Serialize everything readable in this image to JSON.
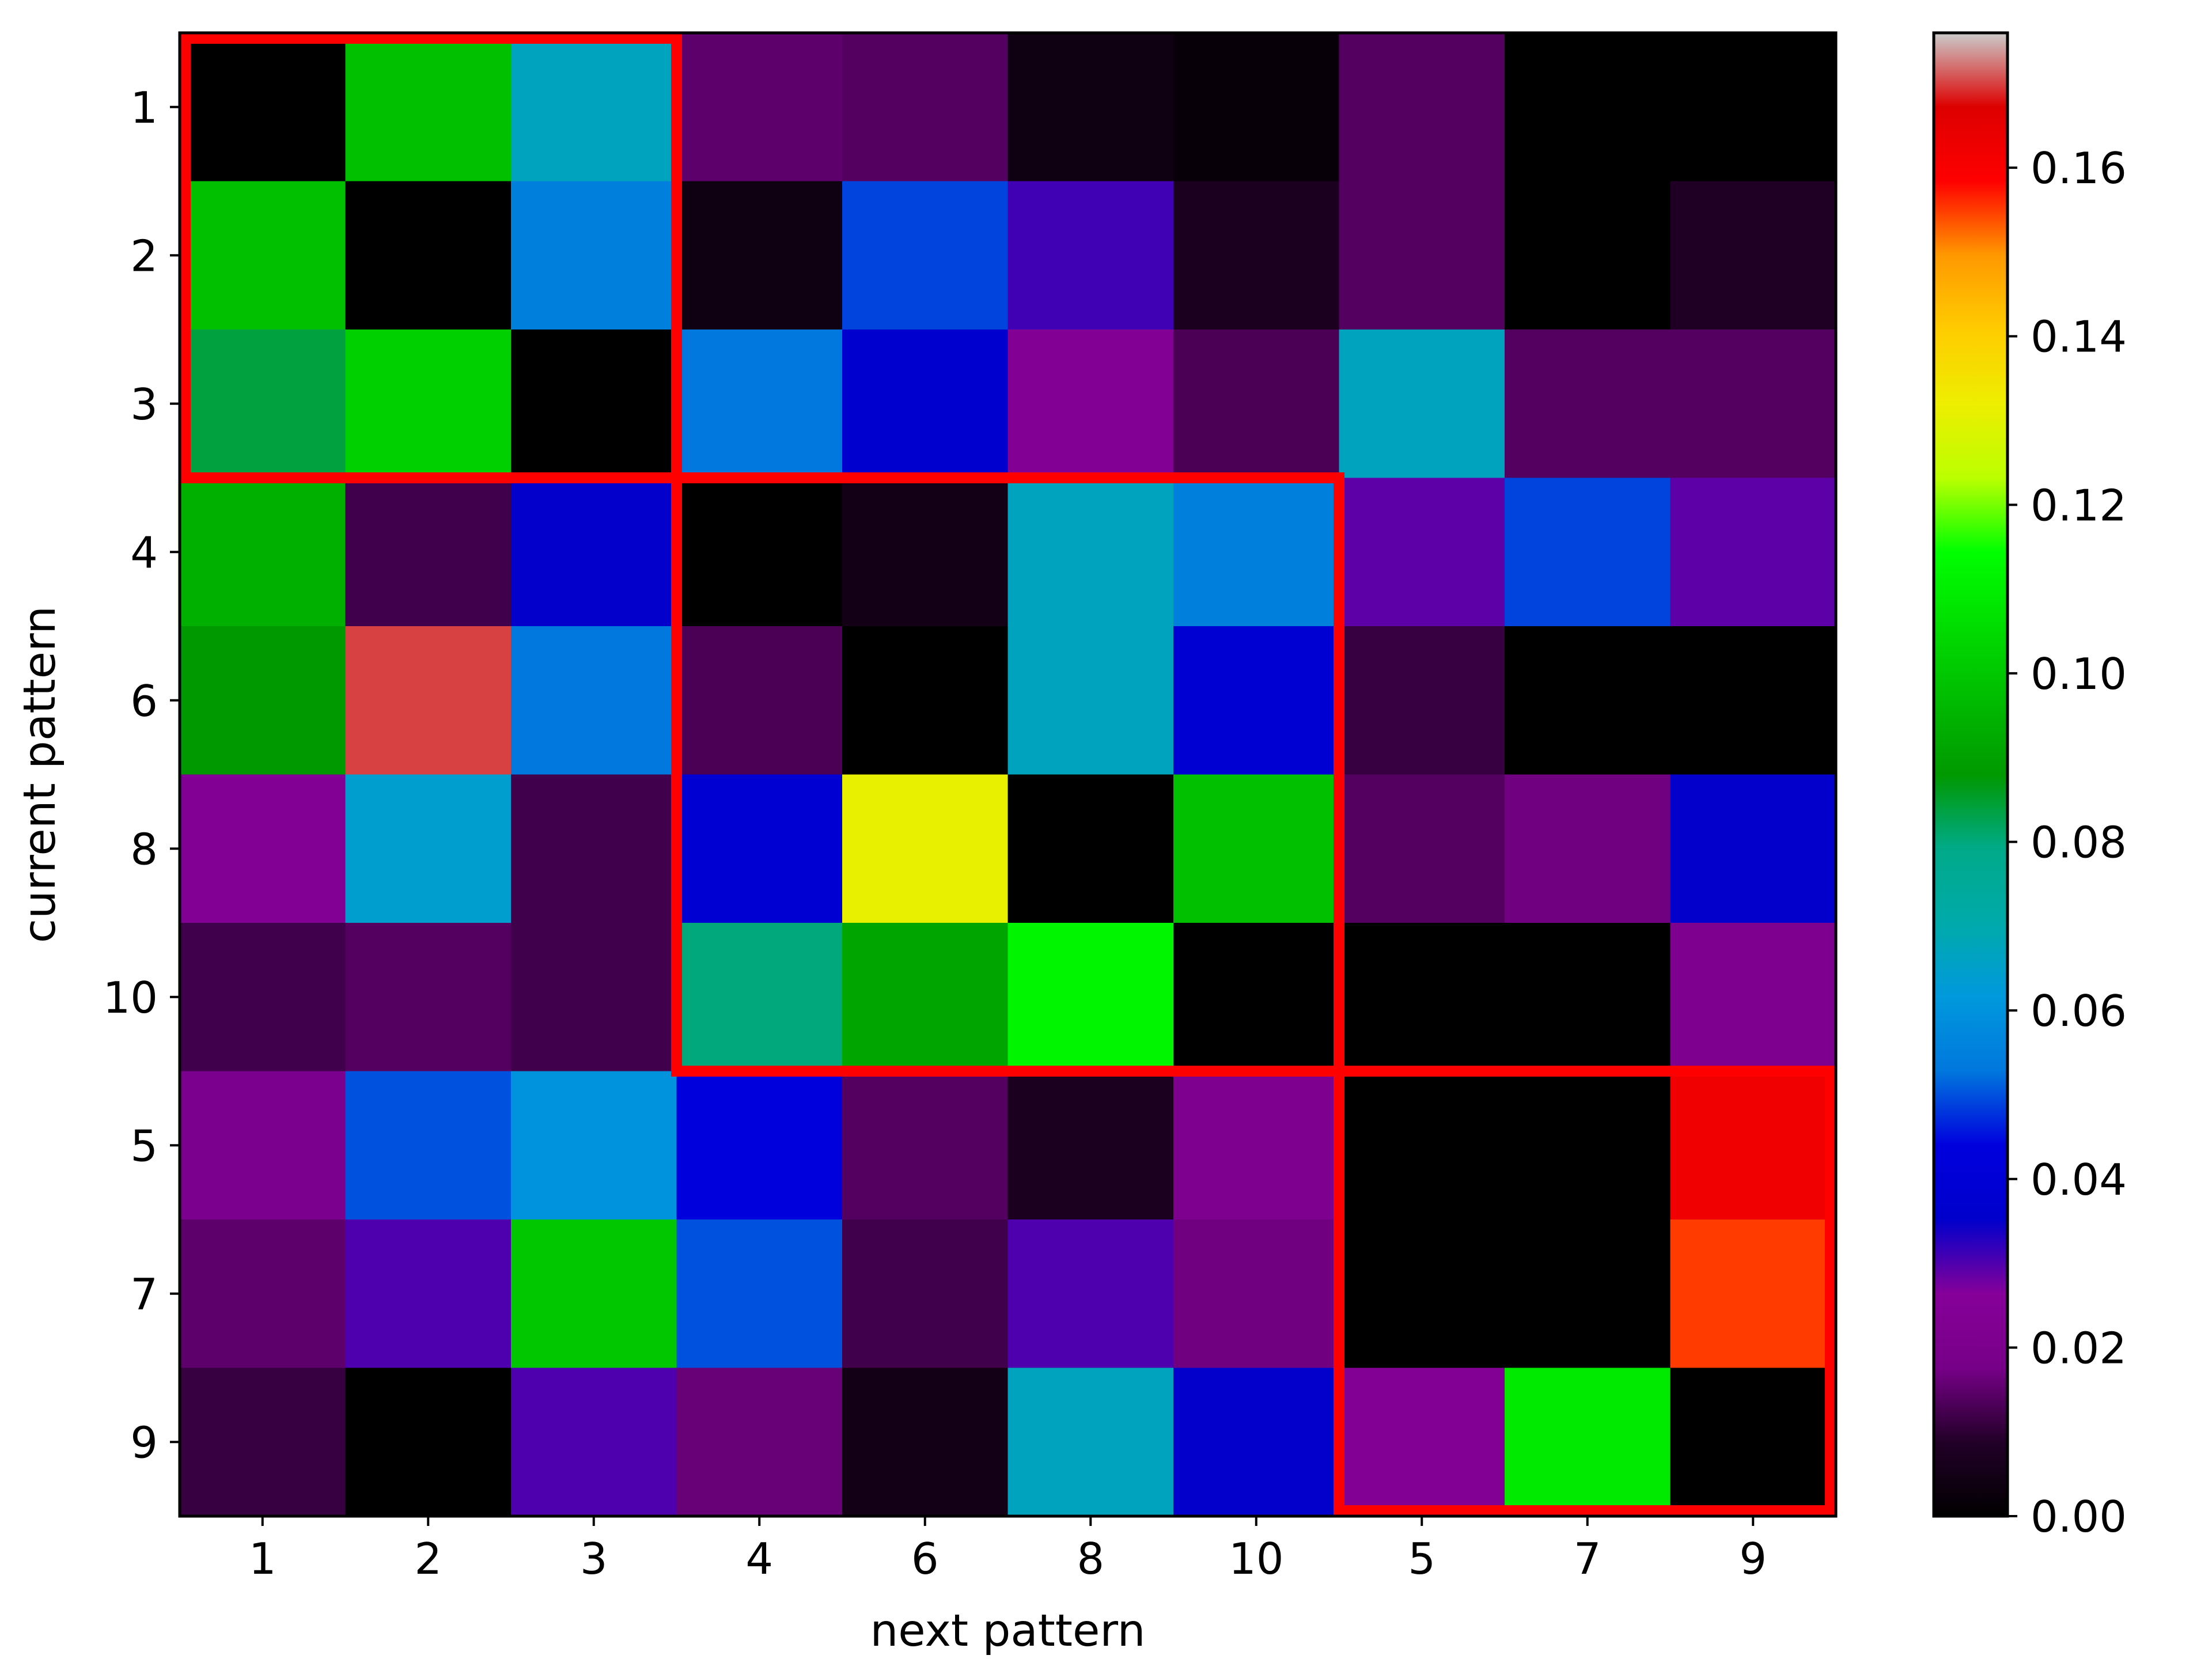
{
  "chart_data": {
    "type": "heatmap",
    "title": "",
    "xlabel": "next pattern",
    "ylabel": "current pattern",
    "x_categories": [
      "1",
      "2",
      "3",
      "4",
      "6",
      "8",
      "10",
      "5",
      "7",
      "9"
    ],
    "y_categories": [
      "1",
      "2",
      "3",
      "4",
      "6",
      "8",
      "10",
      "5",
      "7",
      "9"
    ],
    "values": [
      [
        0.0,
        0.098,
        0.067,
        0.015,
        0.014,
        0.004,
        0.002,
        0.014,
        0.0,
        0.0
      ],
      [
        0.098,
        0.0,
        0.055,
        0.004,
        0.049,
        0.031,
        0.007,
        0.014,
        0.0,
        0.008
      ],
      [
        0.084,
        0.102,
        0.0,
        0.053,
        0.036,
        0.024,
        0.013,
        0.067,
        0.014,
        0.014
      ],
      [
        0.094,
        0.012,
        0.035,
        0.0,
        0.005,
        0.067,
        0.055,
        0.029,
        0.049,
        0.029
      ],
      [
        0.088,
        0.17,
        0.053,
        0.013,
        0.0,
        0.067,
        0.039,
        0.011,
        0.0,
        0.0
      ],
      [
        0.024,
        0.064,
        0.012,
        0.039,
        0.131,
        0.0,
        0.098,
        0.014,
        0.017,
        0.035
      ],
      [
        0.012,
        0.014,
        0.012,
        0.08,
        0.091,
        0.112,
        0.0,
        0.0,
        0.0,
        0.021
      ],
      [
        0.02,
        0.05,
        0.06,
        0.044,
        0.014,
        0.007,
        0.021,
        0.0,
        0.0,
        0.162
      ],
      [
        0.015,
        0.03,
        0.1,
        0.05,
        0.012,
        0.03,
        0.017,
        0.0,
        0.0,
        0.155
      ],
      [
        0.011,
        0.0,
        0.03,
        0.016,
        0.005,
        0.067,
        0.035,
        0.024,
        0.109,
        0.0
      ]
    ],
    "colormap": "nipy_spectral",
    "colorbar": {
      "vmin": 0.0,
      "vmax": 0.176,
      "ticks": [
        0.0,
        0.02,
        0.04,
        0.06,
        0.08,
        0.1,
        0.12,
        0.14,
        0.16
      ],
      "tick_labels": [
        "0.00",
        "0.02",
        "0.04",
        "0.06",
        "0.08",
        "0.10",
        "0.12",
        "0.14",
        "0.16"
      ],
      "placement": "right"
    },
    "highlight_blocks": [
      {
        "x_from": "1",
        "x_to": "3",
        "y_from": "1",
        "y_to": "3",
        "color": "#ff0000"
      },
      {
        "x_from": "4",
        "x_to": "10",
        "y_from": "4",
        "y_to": "10",
        "color": "#ff0000"
      },
      {
        "x_from": "5",
        "x_to": "9",
        "y_from": "5",
        "y_to": "9",
        "color": "#ff0000"
      }
    ],
    "grid": false
  }
}
